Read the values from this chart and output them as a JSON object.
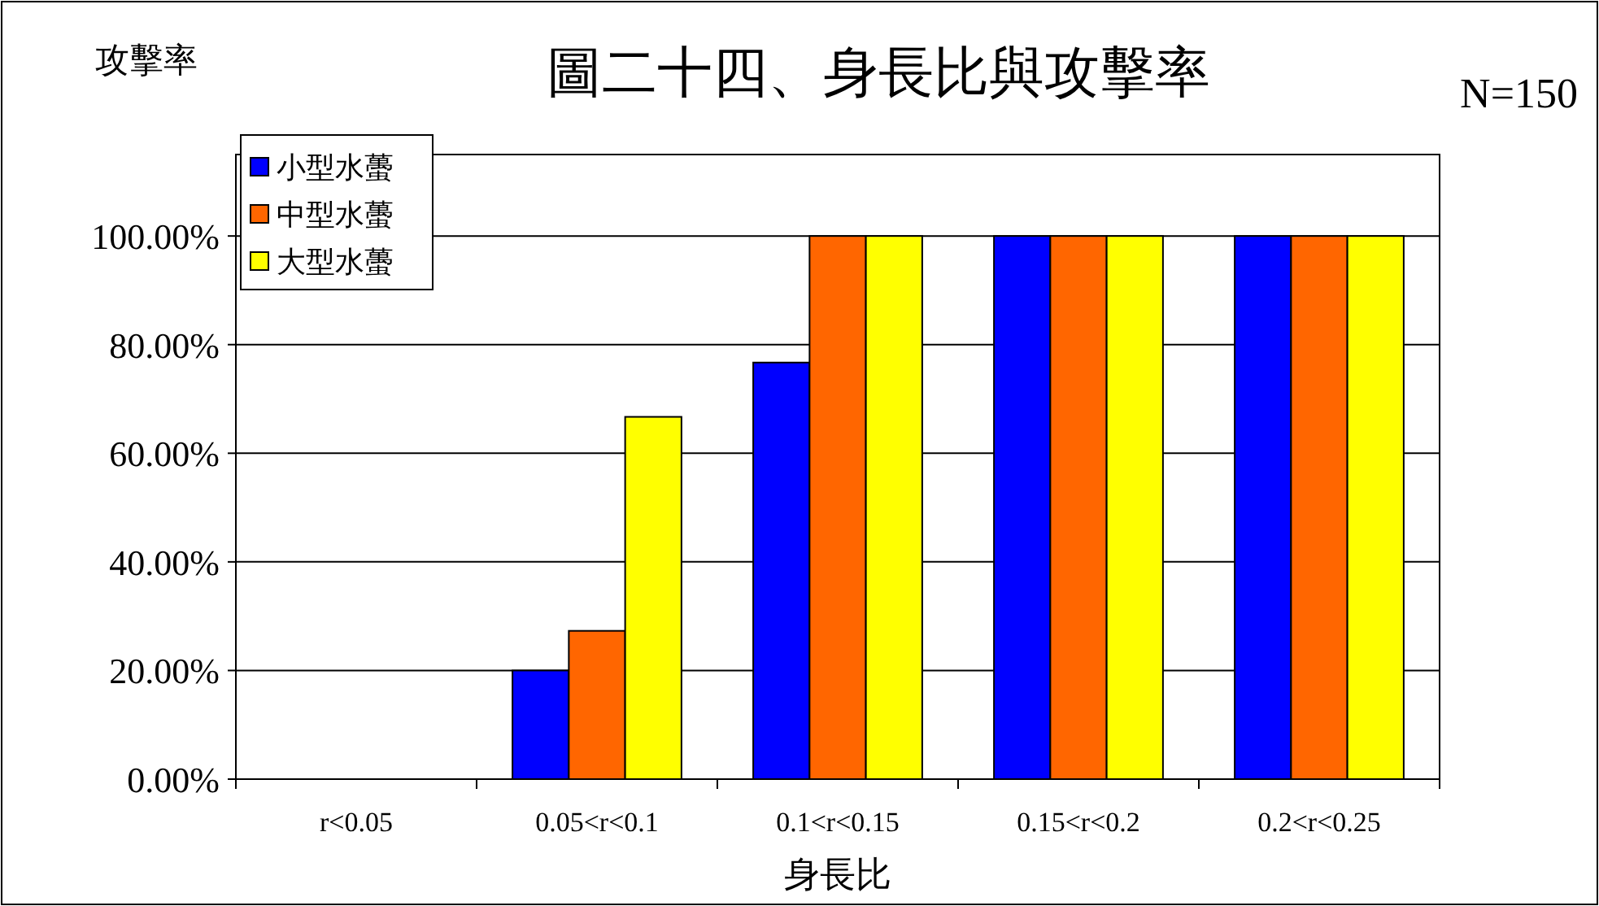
{
  "chart_data": {
    "type": "bar",
    "title": "圖二十四、身長比與攻擊率",
    "ylabel": "攻擊率",
    "xlabel": "身長比",
    "annotations": [
      "N=150"
    ],
    "categories": [
      "r<0.05",
      "0.05<r<0.1",
      "0.1<r<0.15",
      "0.15<r<0.2",
      "0.2<r<0.25"
    ],
    "series": [
      {
        "name": "小型水蠆",
        "color": "#0000ff",
        "values": [
          0,
          20,
          76.7,
          100,
          100
        ]
      },
      {
        "name": "中型水蠆",
        "color": "#ff6600",
        "values": [
          0,
          27.3,
          100,
          100,
          100
        ]
      },
      {
        "name": "大型水蠆",
        "color": "#ffff00",
        "values": [
          0,
          66.7,
          100,
          100,
          100
        ]
      }
    ],
    "ylim": [
      0,
      115
    ],
    "yticks": [
      {
        "value": 0,
        "label": "0.00%"
      },
      {
        "value": 20,
        "label": "20.00%"
      },
      {
        "value": 40,
        "label": "40.00%"
      },
      {
        "value": 60,
        "label": "60.00%"
      },
      {
        "value": 80,
        "label": "80.00%"
      },
      {
        "value": 100,
        "label": "100.00%"
      }
    ],
    "grid": "y",
    "legend": "top left"
  }
}
